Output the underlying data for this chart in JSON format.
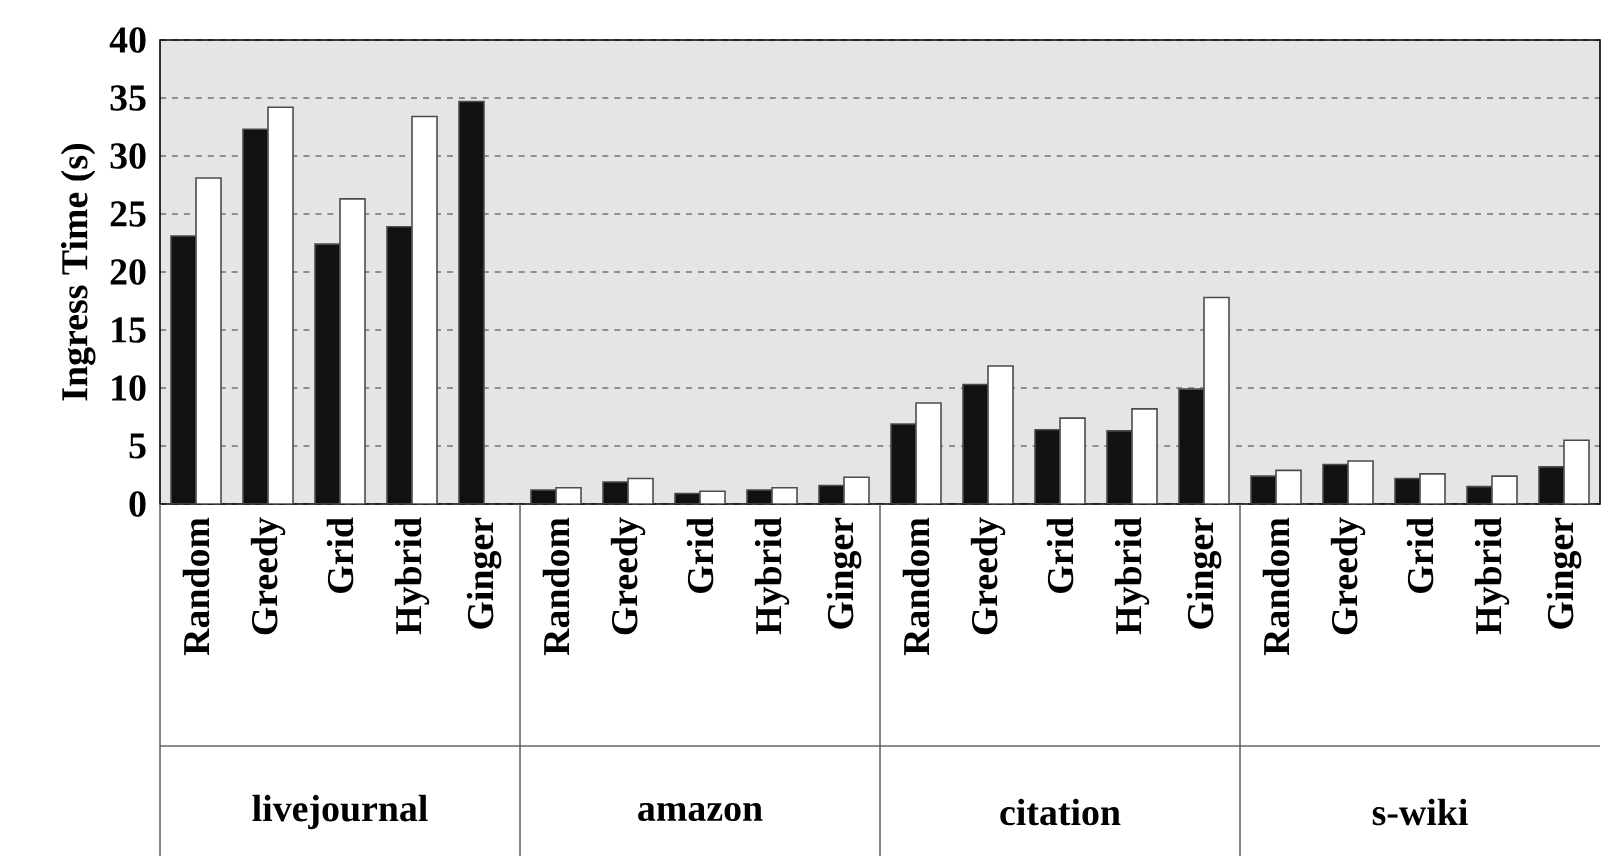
{
  "chart_data": {
    "type": "bar",
    "ylabel": "Ingress Time (s)",
    "categories": [
      "Random",
      "Greedy",
      "Grid",
      "Hybrid",
      "Ginger",
      "Random",
      "Greedy",
      "Grid",
      "Hybrid",
      "Ginger",
      "Random",
      "Greedy",
      "Grid",
      "Hybrid",
      "Ginger",
      "Random",
      "Greedy",
      "Grid",
      "Hybrid",
      "Ginger"
    ],
    "series": [
      {
        "color": "#111111",
        "values": [
          23.1,
          32.3,
          22.4,
          23.9,
          34.7,
          1.2,
          1.9,
          0.9,
          1.2,
          1.6,
          6.9,
          10.3,
          6.4,
          6.3,
          9.9,
          2.4,
          3.4,
          2.2,
          1.5,
          3.2
        ]
      },
      {
        "color": "#ffffff",
        "values": [
          28.1,
          34.2,
          26.3,
          33.4,
          null,
          1.4,
          2.2,
          1.1,
          1.4,
          2.3,
          8.7,
          11.9,
          7.4,
          8.2,
          17.8,
          2.9,
          3.7,
          2.6,
          2.4,
          5.5
        ]
      }
    ],
    "annotations": [
      "livejournal",
      "amazon",
      "citation",
      "s-wiki"
    ],
    "ylim": [
      0,
      40
    ],
    "yticks": [
      0,
      5,
      10,
      15,
      20,
      25,
      30,
      35,
      40
    ],
    "grid": "y"
  }
}
